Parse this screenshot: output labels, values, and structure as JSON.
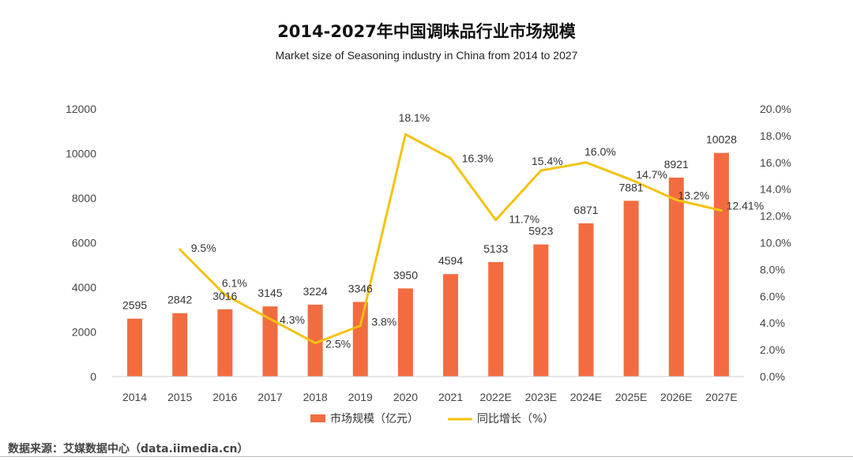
{
  "header": {
    "title": "2014-2027年中国调味品行业市场规模",
    "subtitle": "Market size of Seasoning industry in China from 2014 to 2027"
  },
  "footer": {
    "source": "数据来源：艾媒数据中心（data.iimedia.cn）"
  },
  "colors": {
    "bar": "#f26c40",
    "line": "#f5c20f"
  },
  "chart_data": {
    "type": "bar",
    "categories": [
      "2014",
      "2015",
      "2016",
      "2017",
      "2018",
      "2019",
      "2020",
      "2021",
      "2022E",
      "2023E",
      "2024E",
      "2025E",
      "2026E",
      "2027E"
    ],
    "y_left_ticks": [
      "0",
      "2000",
      "4000",
      "6000",
      "8000",
      "10000",
      "12000"
    ],
    "y_right_ticks": [
      "0.0%",
      "2.0%",
      "4.0%",
      "6.0%",
      "8.0%",
      "10.0%",
      "12.0%",
      "14.0%",
      "16.0%",
      "18.0%",
      "20.0%"
    ],
    "ylim_left": [
      0,
      12000
    ],
    "ylim_right": [
      0,
      20
    ],
    "grid": false,
    "legend_position": "bottom",
    "series": [
      {
        "name": "市场规模（亿元）",
        "type": "bar",
        "axis": "left",
        "values": [
          2595,
          2842,
          3016,
          3145,
          3224,
          3346,
          3950,
          4594,
          5133,
          5923,
          6871,
          7881,
          8921,
          10028
        ],
        "labels": [
          "2595",
          "2842",
          "3016",
          "3145",
          "3224",
          "3346",
          "3950",
          "4594",
          "5133",
          "5923",
          "6871",
          "7881",
          "8921",
          "10028"
        ]
      },
      {
        "name": "同比增长（%）",
        "type": "line",
        "axis": "right",
        "values": [
          null,
          9.5,
          6.1,
          4.3,
          2.5,
          3.8,
          18.1,
          16.3,
          11.7,
          15.4,
          16.0,
          14.7,
          13.2,
          12.41
        ],
        "labels": [
          "",
          "9.5%",
          "6.1%",
          "4.3%",
          "2.5%",
          "3.8%",
          "18.1%",
          "16.3%",
          "11.7%",
          "15.4%",
          "16.0%",
          "14.7%",
          "13.2%",
          "12.41%"
        ]
      }
    ]
  }
}
